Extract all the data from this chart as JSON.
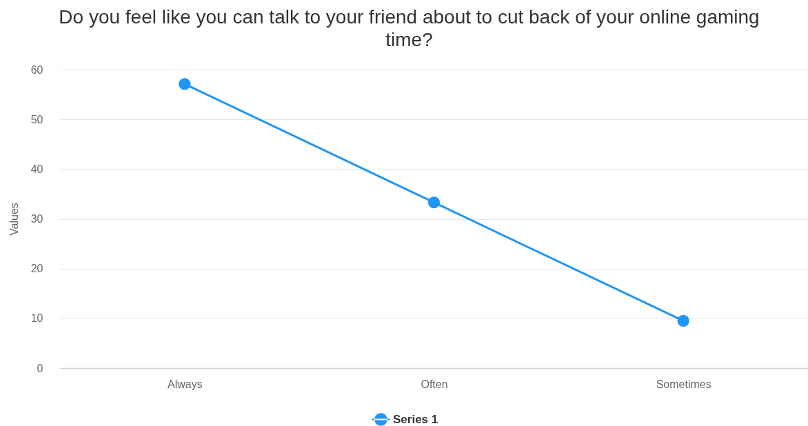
{
  "chart_data": {
    "type": "line",
    "title": "Do you feel like you can talk to your friend about to cut back of your online gaming time?",
    "ylabel": "Values",
    "categories": [
      "Always",
      "Often",
      "Sometimes"
    ],
    "series": [
      {
        "name": "Series 1",
        "color": "#2196f3",
        "values": [
          57.1,
          33.3,
          9.5
        ]
      }
    ],
    "ylim": [
      0,
      60
    ],
    "yticks": [
      0,
      10,
      20,
      30,
      40,
      50,
      60
    ],
    "grid": "y",
    "legend": "bottom",
    "marker": "circle",
    "line_style": "solid"
  }
}
